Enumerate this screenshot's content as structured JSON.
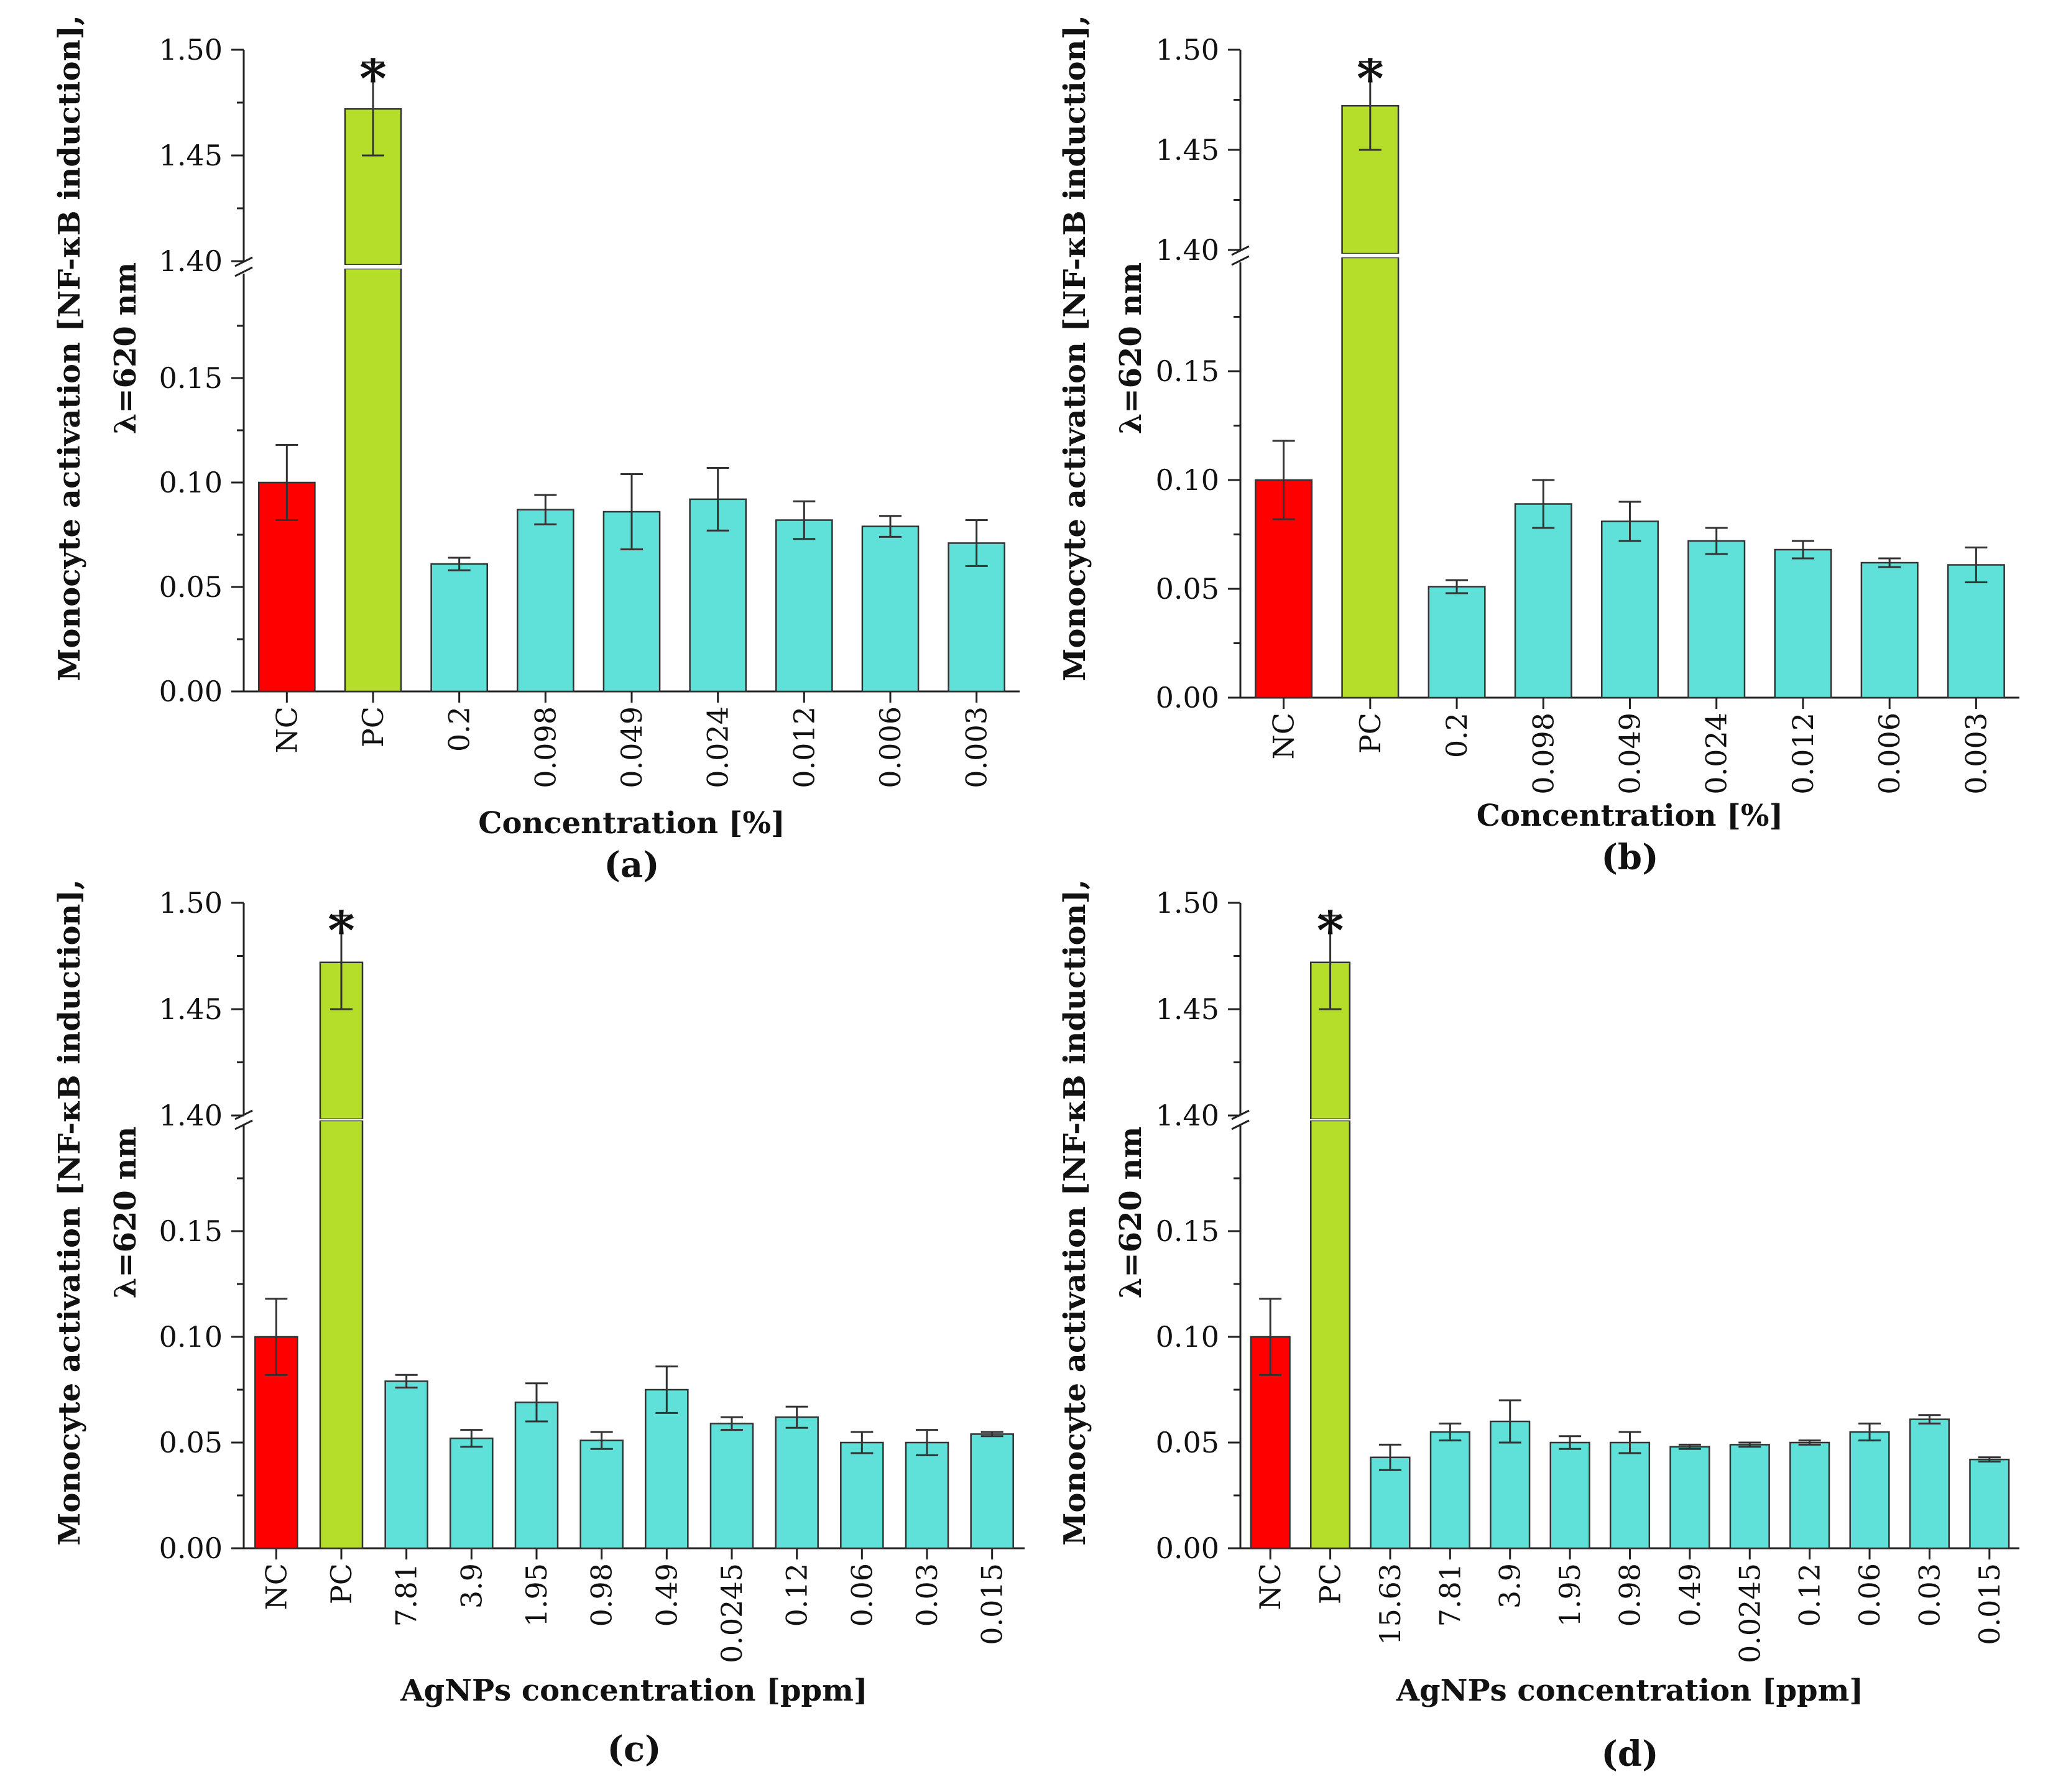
{
  "colors": {
    "nc": "#ff0000",
    "pc": "#b5de2b",
    "sample": "#5fe0d8"
  },
  "chart_data": [
    {
      "type": "bar",
      "panel": "(a)",
      "ylabel_line1": "Monocyte activation [NF-κB induction],",
      "ylabel_line2": "λ=620 nm",
      "xlabel": "Concentration [%]",
      "categories": [
        "NC",
        "PC",
        "0.2",
        "0.098",
        "0.049",
        "0.024",
        "0.012",
        "0.006",
        "0.003"
      ],
      "values": [
        0.1,
        1.472,
        0.061,
        0.087,
        0.086,
        0.092,
        0.082,
        0.079,
        0.071
      ],
      "errors": [
        0.018,
        0.022,
        0.003,
        0.007,
        0.018,
        0.015,
        0.009,
        0.005,
        0.011
      ],
      "y_axis": {
        "lower_range": [
          0,
          0.2
        ],
        "upper_range": [
          1.4,
          1.5
        ],
        "break_between": true
      },
      "yticks_lower": [
        "0.00",
        "0.05",
        "0.10",
        "0.15"
      ],
      "yticks_upper": [
        "1.40",
        "1.45",
        "1.50"
      ],
      "significance": {
        "category": "PC",
        "marker": "*"
      }
    },
    {
      "type": "bar",
      "panel": "(b)",
      "ylabel_line1": "Monocyte activation [NF-κB induction],",
      "ylabel_line2": "λ=620 nm",
      "xlabel": "Concentration [%]",
      "categories": [
        "NC",
        "PC",
        "0.2",
        "0.098",
        "0.049",
        "0.024",
        "0.012",
        "0.006",
        "0.003"
      ],
      "values": [
        0.1,
        1.472,
        0.051,
        0.089,
        0.081,
        0.072,
        0.068,
        0.062,
        0.061
      ],
      "errors": [
        0.018,
        0.022,
        0.003,
        0.011,
        0.009,
        0.006,
        0.004,
        0.002,
        0.008
      ],
      "y_axis": {
        "lower_range": [
          0,
          0.2
        ],
        "upper_range": [
          1.4,
          1.5
        ],
        "break_between": true
      },
      "yticks_lower": [
        "0.00",
        "0.05",
        "0.10",
        "0.15"
      ],
      "yticks_upper": [
        "1.40",
        "1.45",
        "1.50"
      ],
      "significance": {
        "category": "PC",
        "marker": "*"
      }
    },
    {
      "type": "bar",
      "panel": "(c)",
      "ylabel_line1": "Monocyte activation [NF-κB induction],",
      "ylabel_line2": "λ=620 nm",
      "xlabel": "AgNPs concentration [ppm]",
      "categories": [
        "NC",
        "PC",
        "7.81",
        "3.9",
        "1.95",
        "0.98",
        "0.49",
        "0.0245",
        "0.12",
        "0.06",
        "0.03",
        "0.015"
      ],
      "values": [
        0.1,
        1.472,
        0.079,
        0.052,
        0.069,
        0.051,
        0.075,
        0.059,
        0.062,
        0.05,
        0.05,
        0.054
      ],
      "errors": [
        0.018,
        0.022,
        0.003,
        0.004,
        0.009,
        0.004,
        0.011,
        0.003,
        0.005,
        0.005,
        0.006,
        0.001
      ],
      "y_axis": {
        "lower_range": [
          0,
          0.2
        ],
        "upper_range": [
          1.4,
          1.5
        ],
        "break_between": true
      },
      "yticks_lower": [
        "0.00",
        "0.05",
        "0.10",
        "0.15"
      ],
      "yticks_upper": [
        "1.40",
        "1.45",
        "1.50"
      ],
      "significance": {
        "category": "PC",
        "marker": "*"
      }
    },
    {
      "type": "bar",
      "panel": "(d)",
      "ylabel_line1": "Monocyte activation [NF-κB induction],",
      "ylabel_line2": "λ=620 nm",
      "xlabel": "AgNPs concentration [ppm]",
      "categories": [
        "NC",
        "PC",
        "15.63",
        "7.81",
        "3.9",
        "1.95",
        "0.98",
        "0.49",
        "0.0245",
        "0.12",
        "0.06",
        "0.03",
        "0.015"
      ],
      "values": [
        0.1,
        1.472,
        0.043,
        0.055,
        0.06,
        0.05,
        0.05,
        0.048,
        0.049,
        0.05,
        0.055,
        0.061,
        0.042
      ],
      "errors": [
        0.018,
        0.022,
        0.006,
        0.004,
        0.01,
        0.003,
        0.005,
        0.001,
        0.001,
        0.001,
        0.004,
        0.002,
        0.001
      ],
      "y_axis": {
        "lower_range": [
          0,
          0.2
        ],
        "upper_range": [
          1.4,
          1.5
        ],
        "break_between": true
      },
      "yticks_lower": [
        "0.00",
        "0.05",
        "0.10",
        "0.15"
      ],
      "yticks_upper": [
        "1.40",
        "1.45",
        "1.50"
      ],
      "significance": {
        "category": "PC",
        "marker": "*"
      }
    }
  ]
}
